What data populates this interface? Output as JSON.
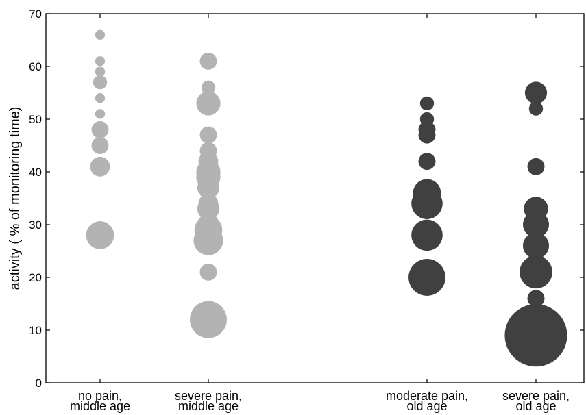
{
  "chart_data": {
    "type": "scatter",
    "subtype": "bubble",
    "title": "",
    "xlabel": "",
    "ylabel": "activity  ( % of monitoring time)",
    "ylim": [
      0,
      70
    ],
    "yticks": [
      0,
      10,
      20,
      30,
      40,
      50,
      60,
      70
    ],
    "grid": false,
    "legend": "none",
    "categories": [
      {
        "line1": "no pain,",
        "line2": "middle age"
      },
      {
        "line1": "severe pain,",
        "line2": "middle age"
      },
      {
        "line1": "moderate pain,",
        "line2": "old age"
      },
      {
        "line1": "severe pain,",
        "line2": "old age"
      }
    ],
    "series": [
      {
        "category_index": 0,
        "color": "#b3b3b3",
        "points": [
          {
            "y": 66,
            "size": 1
          },
          {
            "y": 61,
            "size": 1
          },
          {
            "y": 59,
            "size": 1
          },
          {
            "y": 57,
            "size": 2
          },
          {
            "y": 54,
            "size": 1
          },
          {
            "y": 51,
            "size": 1
          },
          {
            "y": 48,
            "size": 3
          },
          {
            "y": 45,
            "size": 3
          },
          {
            "y": 41,
            "size": 4
          },
          {
            "y": 28,
            "size": 8
          }
        ]
      },
      {
        "category_index": 1,
        "color": "#b3b3b3",
        "points": [
          {
            "y": 61,
            "size": 3
          },
          {
            "y": 56,
            "size": 2
          },
          {
            "y": 53,
            "size": 6
          },
          {
            "y": 47,
            "size": 3
          },
          {
            "y": 44,
            "size": 3
          },
          {
            "y": 42,
            "size": 4
          },
          {
            "y": 40,
            "size": 6
          },
          {
            "y": 39,
            "size": 6
          },
          {
            "y": 37,
            "size": 5
          },
          {
            "y": 34,
            "size": 4
          },
          {
            "y": 33,
            "size": 5
          },
          {
            "y": 30,
            "size": 5
          },
          {
            "y": 29,
            "size": 8
          },
          {
            "y": 27,
            "size": 9
          },
          {
            "y": 21,
            "size": 3
          },
          {
            "y": 12,
            "size": 14
          }
        ]
      },
      {
        "category_index": 2,
        "color": "#404040",
        "points": [
          {
            "y": 53,
            "size": 2
          },
          {
            "y": 50,
            "size": 2
          },
          {
            "y": 48,
            "size": 3
          },
          {
            "y": 47,
            "size": 3
          },
          {
            "y": 42,
            "size": 3
          },
          {
            "y": 36,
            "size": 8
          },
          {
            "y": 34,
            "size": 10
          },
          {
            "y": 28,
            "size": 10
          },
          {
            "y": 20,
            "size": 14
          }
        ]
      },
      {
        "category_index": 3,
        "color": "#404040",
        "points": [
          {
            "y": 55,
            "size": 5
          },
          {
            "y": 52,
            "size": 2
          },
          {
            "y": 41,
            "size": 3
          },
          {
            "y": 33,
            "size": 6
          },
          {
            "y": 30,
            "size": 7
          },
          {
            "y": 26,
            "size": 7
          },
          {
            "y": 21,
            "size": 11
          },
          {
            "y": 16,
            "size": 3
          },
          {
            "y": 9,
            "size": 40
          }
        ]
      }
    ]
  }
}
